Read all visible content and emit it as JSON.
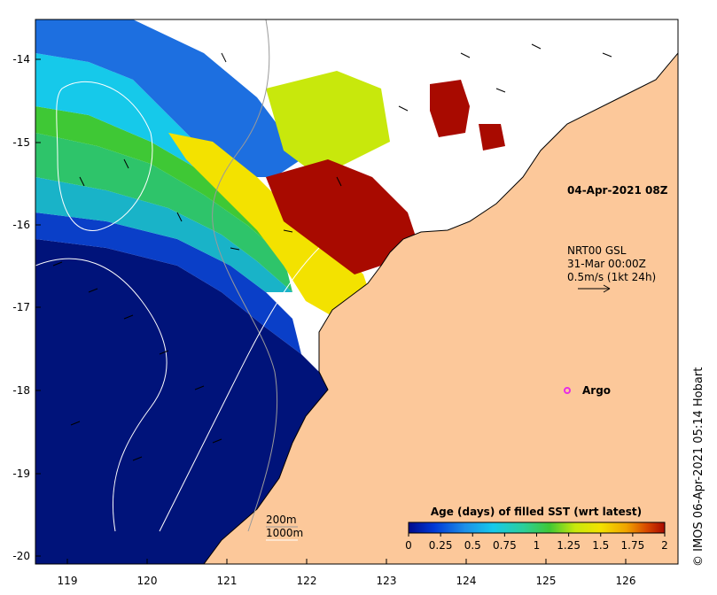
{
  "map": {
    "timestamp": "04-Apr-2021 08Z",
    "current_source": {
      "line1": "NRT00 GSL",
      "line2": "31-Mar 00:00Z",
      "line3": "0.5m/s (1kt 24h)"
    },
    "argo_label": "Argo",
    "depth_legend": [
      "200m",
      "1000m"
    ],
    "x_ticks": [
      "119",
      "120",
      "121",
      "122",
      "123",
      "124",
      "125",
      "126"
    ],
    "y_ticks": [
      "-14",
      "-15",
      "-16",
      "-17",
      "-18",
      "-19",
      "-20"
    ],
    "x_range": [
      118.6,
      126.7
    ],
    "y_range": [
      -20.1,
      -13.5
    ],
    "credit": "© IMOS 06-Apr-2021 05:14 Hobart",
    "colors": {
      "land": "#fcc89a",
      "ocean_old": "#00137a",
      "ocean_young": "#a80a00",
      "argo": "#e62ee6"
    },
    "colorbar": {
      "title": "Age (days) of filled SST (wrt latest)",
      "tick_labels": [
        "0",
        "0.25",
        "0.5",
        "0.75",
        "1",
        "1.25",
        "1.5",
        "1.75",
        "2"
      ],
      "range": [
        0,
        2
      ],
      "colors": [
        "#000a8c",
        "#0039d6",
        "#1d8fe8",
        "#16c9ea",
        "#2ccf99",
        "#3fc835",
        "#c8e80c",
        "#f3e200",
        "#f0a400",
        "#d84800",
        "#a80a00"
      ]
    }
  }
}
